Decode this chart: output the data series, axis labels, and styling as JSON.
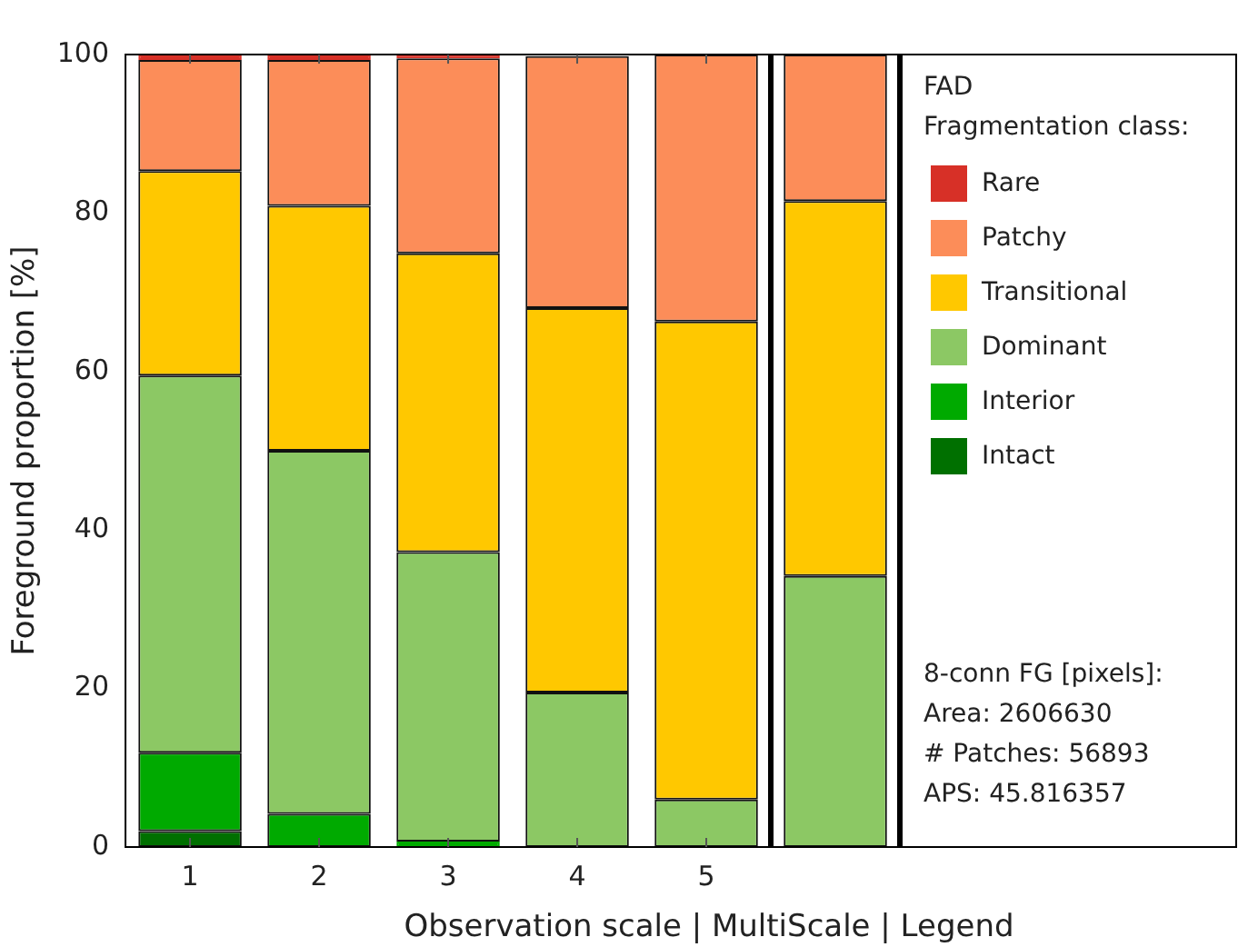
{
  "chart_data": {
    "type": "bar",
    "stacked": true,
    "xlabel": "Observation scale | MultiScale | Legend",
    "ylabel": "Foreground proportion [%]",
    "legend_title": "Fragmentation class:",
    "legend": "right",
    "grid": false,
    "categories": [
      "1",
      "2",
      "3",
      "4",
      "5",
      null
    ],
    "ylim": [
      0,
      100
    ],
    "yticks": [
      0,
      20,
      40,
      60,
      80,
      100
    ],
    "series": [
      {
        "name": "Intact",
        "color": "#007000",
        "values": [
          2.0,
          0,
          0,
          0,
          0,
          0
        ]
      },
      {
        "name": "Interior",
        "color": "#00aa00",
        "values": [
          9.9,
          4.2,
          0.7,
          0,
          0,
          0
        ]
      },
      {
        "name": "Dominant",
        "color": "#8cc864",
        "values": [
          47.6,
          45.8,
          36.5,
          19.5,
          6.0,
          34.2
        ]
      },
      {
        "name": "Transitional",
        "color": "#ffc800",
        "values": [
          25.8,
          30.9,
          37.7,
          48.5,
          60.3,
          47.3
        ]
      },
      {
        "name": "Patchy",
        "color": "#fc8d59",
        "values": [
          14.0,
          18.4,
          24.6,
          31.8,
          33.7,
          18.5
        ]
      },
      {
        "name": "Rare",
        "color": "#d73027",
        "values": [
          0.7,
          0.7,
          0.5,
          null,
          0,
          0
        ]
      }
    ],
    "annotations": [
      "FAD",
      "8-conn FG [pixels]:",
      "Area: 2606630",
      "# Patches: 56893",
      "APS: 45.816357"
    ]
  }
}
